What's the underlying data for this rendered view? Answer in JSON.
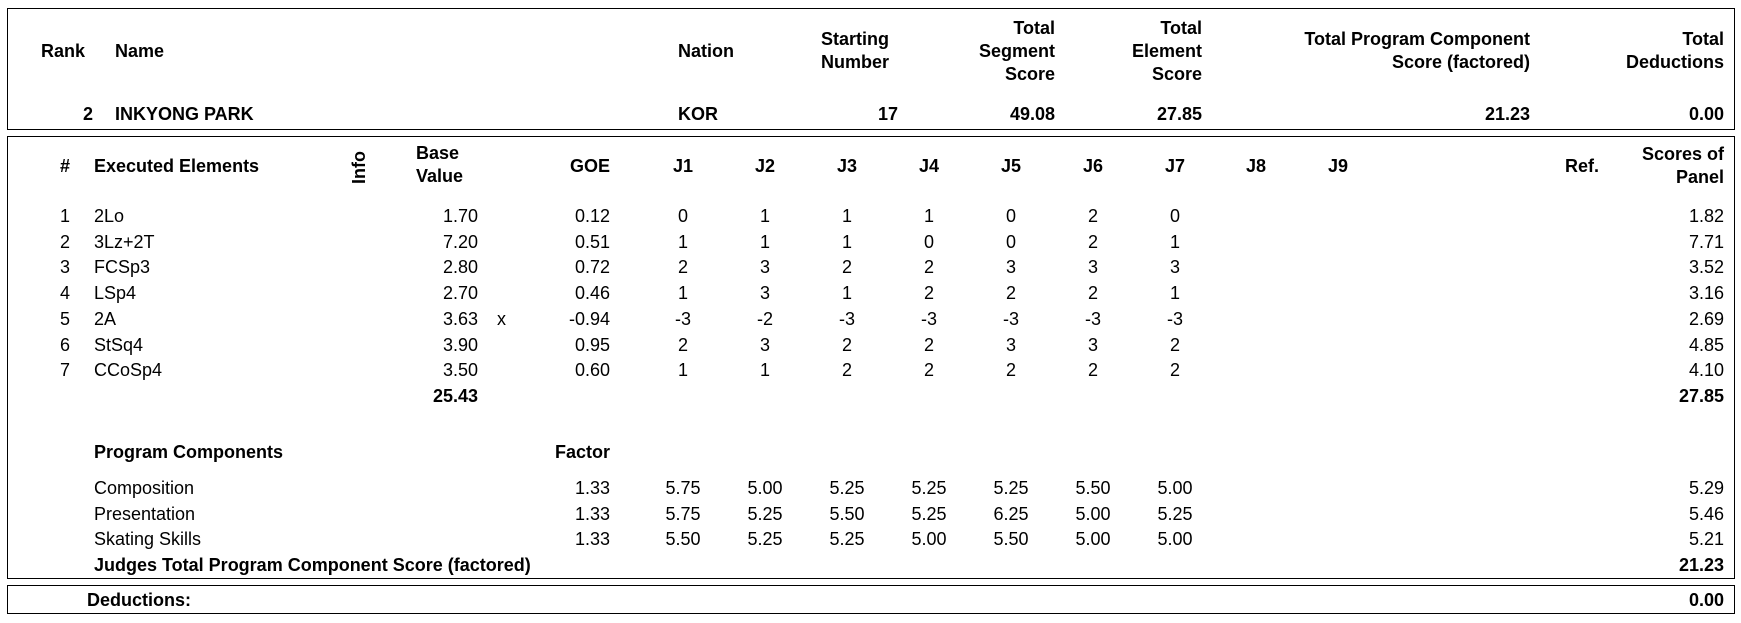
{
  "header": {
    "col_rank": "Rank",
    "col_name": "Name",
    "col_nation": "Nation",
    "col_starting_number": "Starting\nNumber",
    "col_total_segment_score": "Total\nSegment\nScore",
    "col_total_element_score": "Total\nElement\nScore",
    "col_total_pcs": "Total Program Component\nScore (factored)",
    "col_total_deductions": "Total\nDeductions",
    "rank": "2",
    "name": "INKYONG PARK",
    "nation": "KOR",
    "starting_number": "17",
    "total_segment_score": "49.08",
    "total_element_score": "27.85",
    "total_pcs": "21.23",
    "total_deductions": "0.00"
  },
  "elements_table": {
    "col_num": "#",
    "col_element": "Executed Elements",
    "col_info": "Info",
    "col_base_value": "Base\nValue",
    "col_goe": "GOE",
    "judges": [
      "J1",
      "J2",
      "J3",
      "J4",
      "J5",
      "J6",
      "J7",
      "J8",
      "J9"
    ],
    "col_ref": "Ref.",
    "col_scores_of_panel": "Scores of\nPanel",
    "rows": [
      {
        "num": "1",
        "element": "2Lo",
        "info": "",
        "base": "1.70",
        "goe": "0.12",
        "judges": [
          "0",
          "1",
          "1",
          "1",
          "0",
          "2",
          "0"
        ],
        "panel": "1.82"
      },
      {
        "num": "2",
        "element": "3Lz+2T",
        "info": "",
        "base": "7.20",
        "goe": "0.51",
        "judges": [
          "1",
          "1",
          "1",
          "0",
          "0",
          "2",
          "1"
        ],
        "panel": "7.71"
      },
      {
        "num": "3",
        "element": "FCSp3",
        "info": "",
        "base": "2.80",
        "goe": "0.72",
        "judges": [
          "2",
          "3",
          "2",
          "2",
          "3",
          "3",
          "3"
        ],
        "panel": "3.52"
      },
      {
        "num": "4",
        "element": "LSp4",
        "info": "",
        "base": "2.70",
        "goe": "0.46",
        "judges": [
          "1",
          "3",
          "1",
          "2",
          "2",
          "2",
          "1"
        ],
        "panel": "3.16"
      },
      {
        "num": "5",
        "element": "2A",
        "info": "x",
        "base": "3.63",
        "goe": "-0.94",
        "judges": [
          "-3",
          "-2",
          "-3",
          "-3",
          "-3",
          "-3",
          "-3"
        ],
        "panel": "2.69"
      },
      {
        "num": "6",
        "element": "StSq4",
        "info": "",
        "base": "3.90",
        "goe": "0.95",
        "judges": [
          "2",
          "3",
          "2",
          "2",
          "3",
          "3",
          "2"
        ],
        "panel": "4.85"
      },
      {
        "num": "7",
        "element": "CCoSp4",
        "info": "",
        "base": "3.50",
        "goe": "0.60",
        "judges": [
          "1",
          "1",
          "2",
          "2",
          "2",
          "2",
          "2"
        ],
        "panel": "4.10"
      }
    ],
    "base_total": "25.43",
    "panel_total": "27.85"
  },
  "program_components": {
    "title": "Program Components",
    "col_factor": "Factor",
    "rows": [
      {
        "name": "Composition",
        "factor": "1.33",
        "judges": [
          "5.75",
          "5.00",
          "5.25",
          "5.25",
          "5.25",
          "5.50",
          "5.00"
        ],
        "panel": "5.29"
      },
      {
        "name": "Presentation",
        "factor": "1.33",
        "judges": [
          "5.75",
          "5.25",
          "5.50",
          "5.25",
          "6.25",
          "5.00",
          "5.25"
        ],
        "panel": "5.46"
      },
      {
        "name": "Skating Skills",
        "factor": "1.33",
        "judges": [
          "5.50",
          "5.25",
          "5.25",
          "5.00",
          "5.50",
          "5.00",
          "5.00"
        ],
        "panel": "5.21"
      }
    ],
    "total_label": "Judges Total Program Component Score (factored)",
    "total_value": "21.23"
  },
  "deductions": {
    "label": "Deductions:",
    "value": "0.00"
  }
}
